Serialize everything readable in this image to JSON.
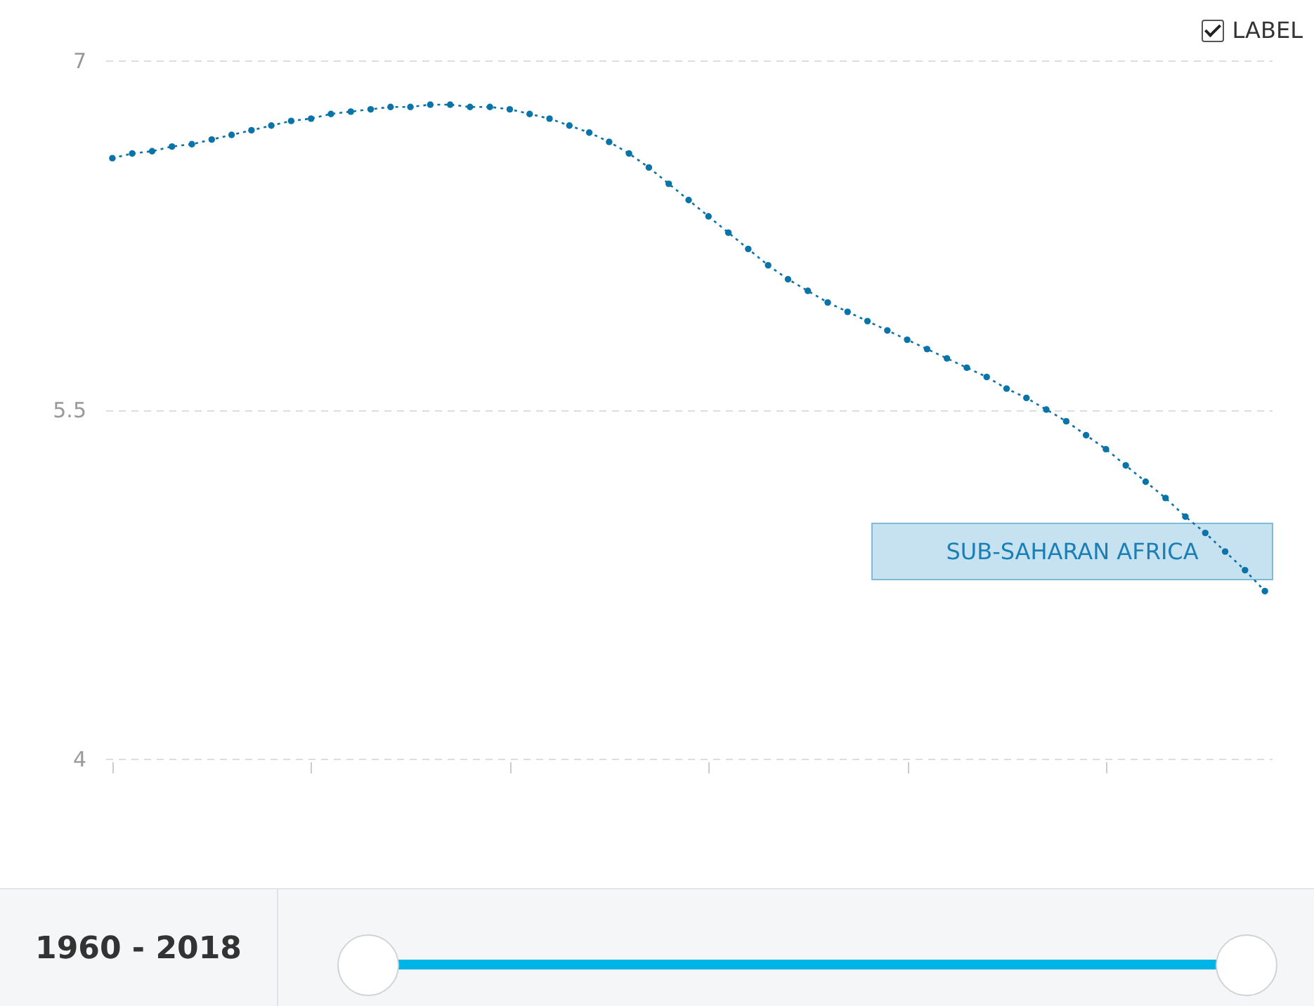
{
  "chart_data": {
    "type": "line",
    "categories": [
      null,
      null,
      null,
      null,
      null,
      null,
      null,
      null,
      null,
      null,
      null,
      null,
      null,
      null,
      null,
      null,
      null,
      null,
      null,
      null,
      null,
      null,
      null,
      null,
      null,
      null,
      null,
      null,
      null,
      null,
      null,
      null,
      null,
      null,
      null,
      null,
      null,
      null,
      null,
      null,
      null,
      null,
      null,
      null,
      null,
      null,
      null,
      null,
      null,
      null,
      null,
      null,
      null,
      null,
      null,
      null,
      null,
      null,
      null
    ],
    "series": [
      {
        "name": "SUB-SAHARAN AFRICA",
        "color": "#0a73a8",
        "values": [
          6.58,
          6.6,
          6.61,
          6.63,
          6.64,
          6.66,
          6.68,
          6.7,
          6.72,
          6.74,
          6.75,
          6.77,
          6.78,
          6.79,
          6.8,
          6.8,
          6.81,
          6.81,
          6.8,
          6.8,
          6.79,
          6.77,
          6.75,
          6.72,
          6.69,
          6.65,
          6.6,
          6.54,
          6.47,
          6.4,
          6.33,
          6.26,
          6.19,
          6.12,
          6.06,
          6.01,
          5.96,
          5.92,
          5.88,
          5.84,
          5.8,
          5.76,
          5.72,
          5.68,
          5.64,
          5.59,
          5.55,
          5.5,
          5.45,
          5.39,
          5.33,
          5.26,
          5.19,
          5.12,
          5.04,
          4.97,
          4.89,
          4.81,
          4.72
        ]
      }
    ],
    "ylim": [
      4,
      7
    ],
    "yticks": [
      4,
      5.5,
      7
    ],
    "grid": "y",
    "tick_labels": "y",
    "legend": "right",
    "marker": "circle",
    "line_style": "dotted",
    "annotations": [
      "LABEL",
      "1960 - 2018"
    ]
  }
}
